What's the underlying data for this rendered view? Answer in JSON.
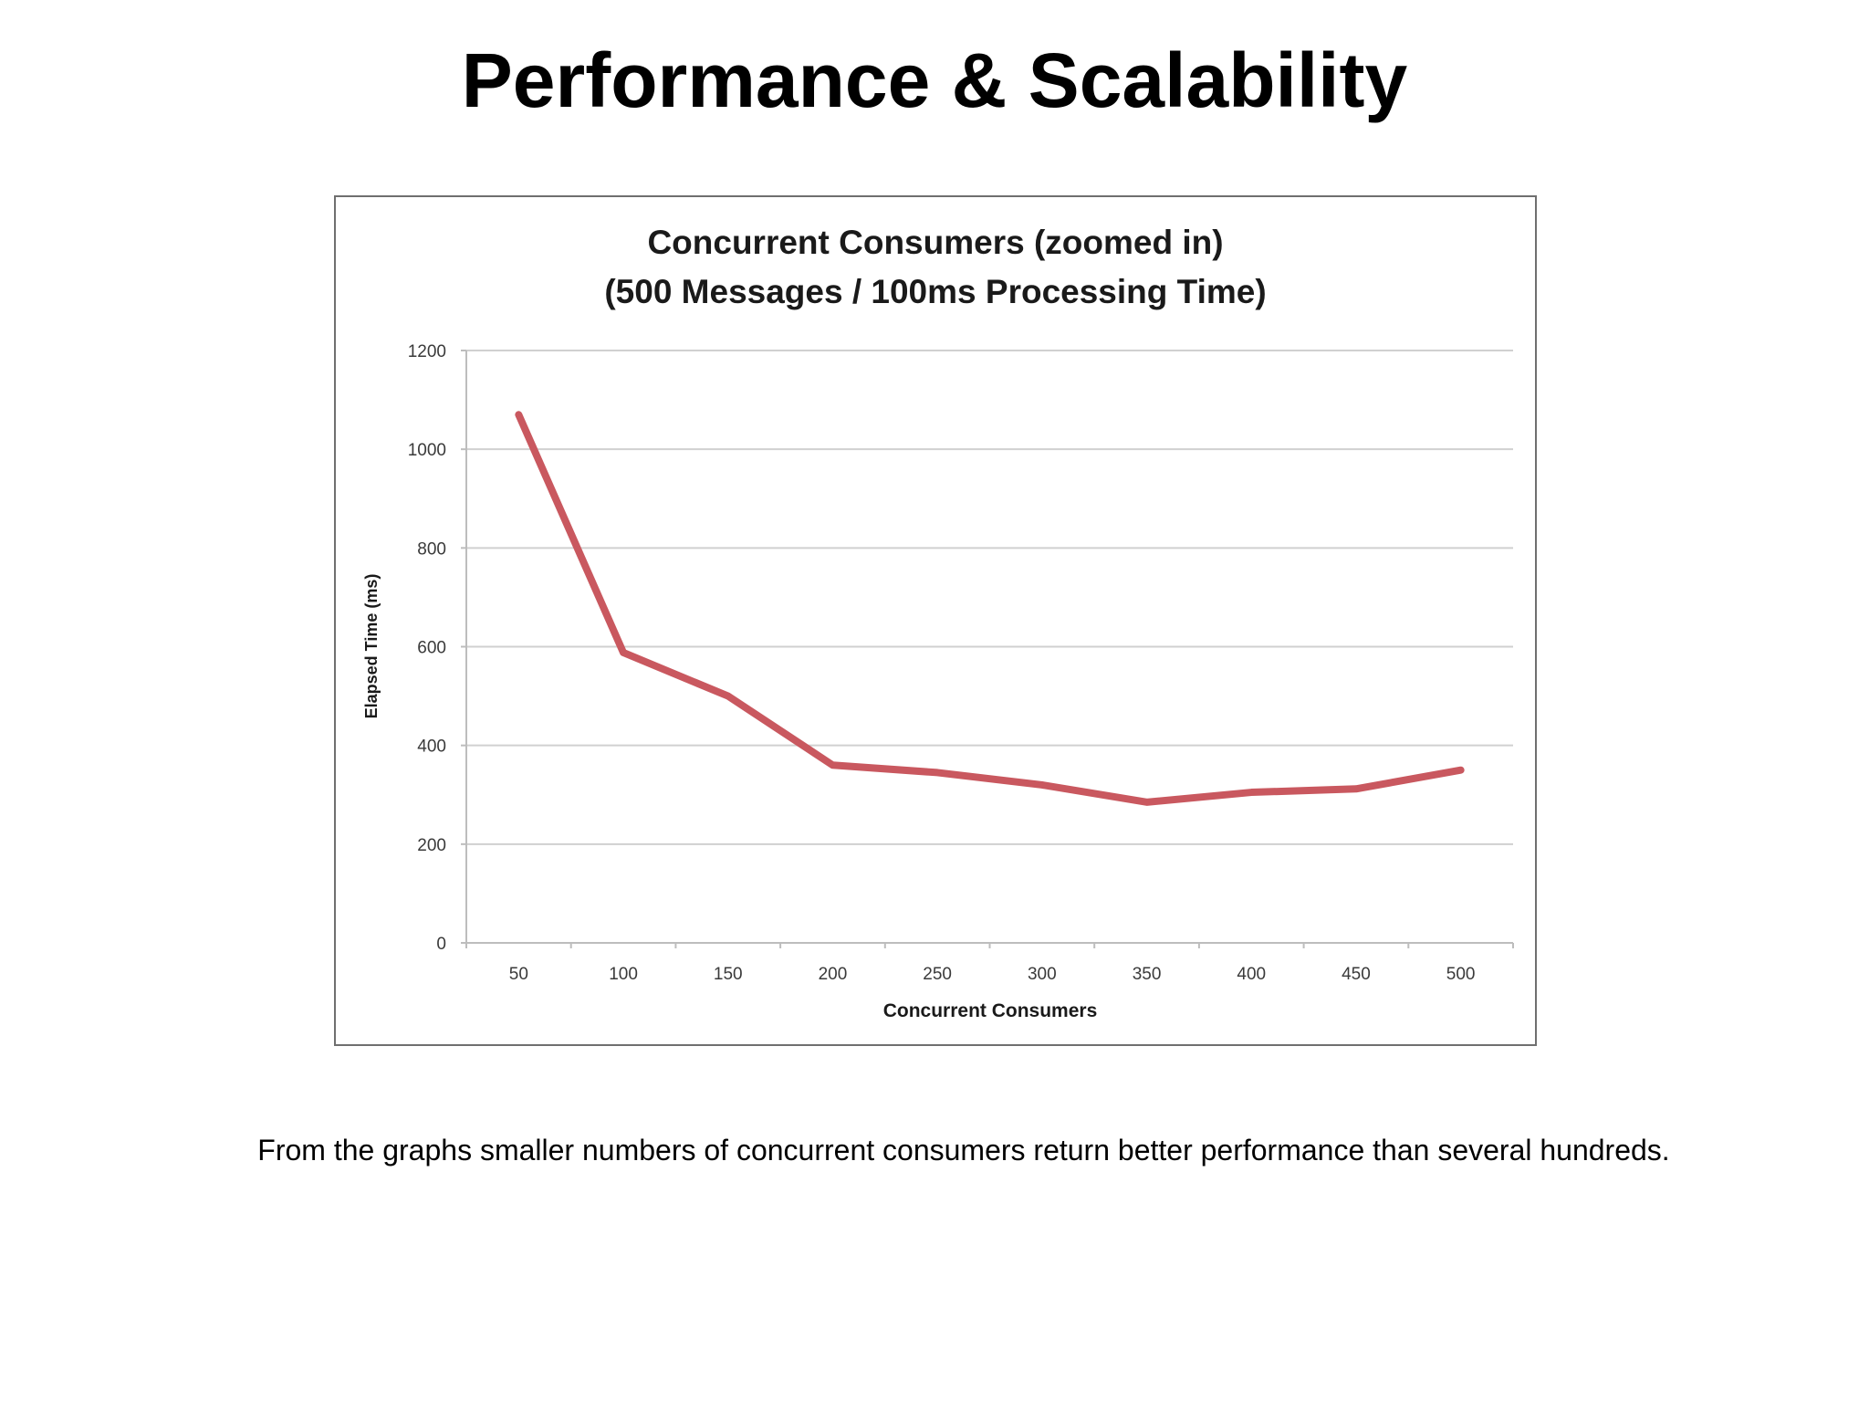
{
  "slide": {
    "title": "Performance & Scalability",
    "caption": "From the graphs smaller numbers of concurrent consumers return better performance than several hundreds."
  },
  "chart_data": {
    "type": "line",
    "title": "Concurrent Consumers (zoomed in)",
    "subtitle": "(500 Messages / 100ms Processing Time)",
    "xlabel": "Concurrent Consumers",
    "ylabel": "Elapsed Time (ms)",
    "categories": [
      "50",
      "100",
      "150",
      "200",
      "250",
      "300",
      "350",
      "400",
      "450",
      "500"
    ],
    "yticks": [
      "0",
      "200",
      "400",
      "600",
      "800",
      "1000",
      "1200"
    ],
    "ylim": [
      0,
      1200
    ],
    "grid": true,
    "legend": "none",
    "series": [
      {
        "values": [
          1070,
          588,
          500,
          360,
          345,
          320,
          285,
          305,
          312,
          350
        ],
        "color": "#c9585f"
      }
    ]
  }
}
